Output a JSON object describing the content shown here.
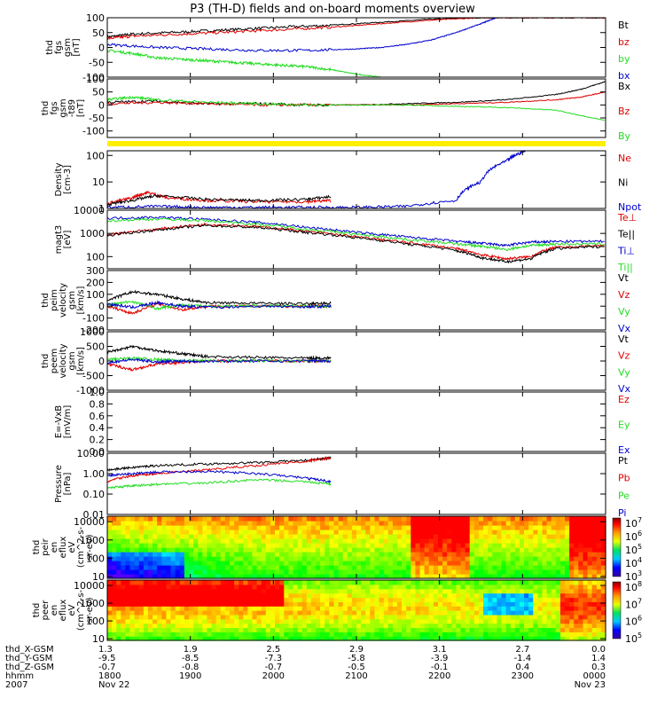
{
  "title": "P3 (TH-D) fields and on-board moments overview",
  "colors": {
    "black": "#000000",
    "red": "#e00000",
    "green": "#22dd22",
    "blue": "#0000cc",
    "yellow": "#ffee00"
  },
  "chart_data": [
    {
      "type": "line",
      "panel": "fgs",
      "ylabel": [
        "thd",
        "fgs",
        "gsm",
        "[nT]"
      ],
      "ylim": [
        -100,
        100
      ],
      "yticks": [
        "100",
        "50",
        "0",
        "-50",
        "-100"
      ],
      "ytick_values": [
        100,
        50,
        0,
        -50,
        -100
      ],
      "series": [
        {
          "name": "Bt",
          "color": "black",
          "x": [
            0,
            0.05,
            0.15,
            0.25,
            0.35,
            0.45,
            0.55,
            0.65,
            0.75,
            0.85,
            0.95,
            1.0
          ],
          "values": [
            35,
            45,
            52,
            60,
            68,
            75,
            85,
            95,
            100,
            100,
            100,
            100
          ]
        },
        {
          "name": "bz",
          "color": "red",
          "x": [
            0,
            0.05,
            0.15,
            0.25,
            0.35,
            0.45,
            0.55,
            0.65,
            0.75,
            0.85,
            0.95,
            1.0
          ],
          "values": [
            30,
            38,
            45,
            52,
            60,
            68,
            80,
            92,
            100,
            100,
            100,
            100
          ]
        },
        {
          "name": "by",
          "color": "green",
          "x": [
            0,
            0.05,
            0.1,
            0.15,
            0.2,
            0.25,
            0.3,
            0.35,
            0.4,
            0.45,
            0.5,
            0.55
          ],
          "values": [
            -10,
            -20,
            -35,
            -40,
            -45,
            -50,
            -55,
            -60,
            -65,
            -75,
            -90,
            -100
          ]
        },
        {
          "name": "bx",
          "color": "blue",
          "x": [
            0,
            0.1,
            0.2,
            0.3,
            0.4,
            0.5,
            0.55,
            0.6,
            0.65,
            0.7,
            0.75,
            0.78
          ],
          "values": [
            10,
            0,
            -5,
            -10,
            -10,
            -5,
            0,
            10,
            25,
            50,
            80,
            100
          ]
        }
      ]
    },
    {
      "type": "line",
      "panel": "fgs-t89",
      "ylabel": [
        "thd",
        "fgs",
        "gsm",
        "-t89",
        "[nT]"
      ],
      "ylim": [
        -125,
        100
      ],
      "yticks": [
        "100",
        "50",
        "0",
        "-50",
        "-100"
      ],
      "ytick_values": [
        100,
        50,
        0,
        -50,
        -100
      ],
      "series": [
        {
          "name": "Bx",
          "color": "black",
          "x": [
            0,
            0.1,
            0.2,
            0.3,
            0.4,
            0.5,
            0.6,
            0.7,
            0.8,
            0.9,
            0.95,
            1.0
          ],
          "values": [
            10,
            15,
            5,
            5,
            0,
            0,
            5,
            10,
            20,
            40,
            60,
            90
          ]
        },
        {
          "name": "Bz",
          "color": "red",
          "x": [
            0,
            0.1,
            0.2,
            0.3,
            0.4,
            0.5,
            0.6,
            0.7,
            0.8,
            0.9,
            0.95,
            1.0
          ],
          "values": [
            5,
            10,
            5,
            0,
            0,
            0,
            0,
            5,
            10,
            20,
            30,
            50
          ]
        },
        {
          "name": "By",
          "color": "green",
          "x": [
            0,
            0.05,
            0.1,
            0.2,
            0.3,
            0.4,
            0.5,
            0.6,
            0.7,
            0.8,
            0.9,
            1.0
          ],
          "values": [
            20,
            30,
            20,
            10,
            5,
            0,
            0,
            0,
            -5,
            -10,
            -20,
            -60
          ]
        }
      ]
    },
    {
      "type": "line",
      "panel": "density",
      "ylabel": [
        "Density",
        "[cm-3]"
      ],
      "yscale": "log",
      "ylim": [
        1,
        150
      ],
      "yticks": [
        "100",
        "10",
        "1"
      ],
      "ytick_values": [
        100,
        10,
        1
      ],
      "series": [
        {
          "name": "Ne",
          "color": "red",
          "x": [
            0,
            0.05,
            0.08,
            0.12,
            0.2,
            0.3,
            0.4,
            0.45
          ],
          "values": [
            1.5,
            2.5,
            4,
            2.5,
            2,
            1.8,
            1.8,
            2
          ]
        },
        {
          "name": "Ni",
          "color": "black",
          "x": [
            0,
            0.05,
            0.1,
            0.2,
            0.3,
            0.4,
            0.45
          ],
          "values": [
            1.4,
            2,
            3,
            2.2,
            2,
            2.2,
            2.8
          ]
        },
        {
          "name": "Npot",
          "color": "blue",
          "x": [
            0,
            0.1,
            0.2,
            0.3,
            0.4,
            0.5,
            0.6,
            0.7,
            0.75,
            0.8,
            0.84
          ],
          "values": [
            1.1,
            1.2,
            1.1,
            1.1,
            1.1,
            1.1,
            1.2,
            2,
            10,
            60,
            150
          ]
        }
      ]
    },
    {
      "type": "line",
      "panel": "temperature",
      "ylabel": [
        "magt3",
        "[eV]"
      ],
      "yscale": "log",
      "ylim": [
        30,
        10000
      ],
      "yticks": [
        "10000",
        "1000",
        "100"
      ],
      "ytick_values": [
        10000,
        1000,
        100
      ],
      "series": [
        {
          "name": "Te⊥",
          "color": "red",
          "x": [
            0,
            0.1,
            0.2,
            0.3,
            0.4,
            0.5,
            0.6,
            0.7,
            0.75,
            0.8,
            0.85,
            0.9,
            1.0
          ],
          "values": [
            900,
            1500,
            2500,
            2000,
            1200,
            700,
            400,
            220,
            120,
            80,
            100,
            250,
            300
          ]
        },
        {
          "name": "Te||",
          "color": "black",
          "x": [
            0,
            0.1,
            0.2,
            0.3,
            0.4,
            0.5,
            0.6,
            0.7,
            0.75,
            0.8,
            0.85,
            0.9,
            1.0
          ],
          "values": [
            800,
            1400,
            2200,
            1800,
            1100,
            650,
            350,
            180,
            90,
            60,
            80,
            220,
            280
          ]
        },
        {
          "name": "Ti⊥",
          "color": "blue",
          "x": [
            0,
            0.1,
            0.2,
            0.3,
            0.4,
            0.5,
            0.6,
            0.7,
            0.75,
            0.8,
            0.85,
            0.9,
            1.0
          ],
          "values": [
            4500,
            5000,
            4000,
            3000,
            1800,
            1100,
            700,
            450,
            380,
            300,
            420,
            450,
            450
          ]
        },
        {
          "name": "Ti||",
          "color": "green",
          "x": [
            0,
            0.1,
            0.2,
            0.3,
            0.4,
            0.5,
            0.6,
            0.7,
            0.75,
            0.8,
            0.85,
            0.9,
            1.0
          ],
          "values": [
            3500,
            4200,
            3500,
            2500,
            1500,
            900,
            550,
            350,
            280,
            200,
            300,
            350,
            350
          ]
        }
      ]
    },
    {
      "type": "line",
      "panel": "peim-velocity",
      "ylabel": [
        "thd",
        "peim",
        "velocity",
        "gsm",
        "[km/s]"
      ],
      "ylim": [
        -200,
        300
      ],
      "yticks": [
        "300",
        "200",
        "100",
        "0",
        "-100",
        "-200"
      ],
      "ytick_values": [
        300,
        200,
        100,
        0,
        -100,
        -200
      ],
      "series": [
        {
          "name": "Vt",
          "color": "black",
          "x": [
            0,
            0.05,
            0.1,
            0.15,
            0.2,
            0.3,
            0.4,
            0.45
          ],
          "values": [
            50,
            120,
            100,
            60,
            30,
            25,
            20,
            25
          ]
        },
        {
          "name": "Vz",
          "color": "red",
          "x": [
            0,
            0.05,
            0.1,
            0.15,
            0.2,
            0.3,
            0.4,
            0.45
          ],
          "values": [
            0,
            -60,
            20,
            -30,
            0,
            0,
            0,
            0
          ]
        },
        {
          "name": "Vy",
          "color": "green",
          "x": [
            0,
            0.05,
            0.1,
            0.15,
            0.2,
            0.3,
            0.4,
            0.45
          ],
          "values": [
            10,
            40,
            -20,
            10,
            0,
            5,
            0,
            0
          ]
        },
        {
          "name": "Vx",
          "color": "blue",
          "x": [
            0,
            0.05,
            0.1,
            0.15,
            0.2,
            0.3,
            0.4,
            0.45
          ],
          "values": [
            20,
            -10,
            30,
            0,
            -10,
            0,
            -5,
            0
          ]
        }
      ]
    },
    {
      "type": "line",
      "panel": "peem-velocity",
      "ylabel": [
        "thd",
        "peem",
        "velocity",
        "gsm",
        "[km/s]"
      ],
      "ylim": [
        -1000,
        1000
      ],
      "yticks": [
        "1000",
        "500",
        "0",
        "-500",
        "-1000"
      ],
      "ytick_values": [
        1000,
        500,
        0,
        -500,
        -1000
      ],
      "series": [
        {
          "name": "Vt",
          "color": "black",
          "x": [
            0,
            0.05,
            0.1,
            0.15,
            0.2,
            0.3,
            0.4,
            0.45
          ],
          "values": [
            300,
            500,
            350,
            250,
            150,
            120,
            100,
            100
          ]
        },
        {
          "name": "Vz",
          "color": "red",
          "x": [
            0,
            0.05,
            0.1,
            0.15,
            0.2,
            0.3,
            0.4,
            0.45
          ],
          "values": [
            -100,
            -300,
            -100,
            -50,
            0,
            0,
            0,
            0
          ]
        },
        {
          "name": "Vy",
          "color": "green",
          "x": [
            0,
            0.05,
            0.1,
            0.15,
            0.2,
            0.3,
            0.4,
            0.45
          ],
          "values": [
            50,
            100,
            50,
            20,
            10,
            10,
            0,
            0
          ]
        },
        {
          "name": "Vx",
          "color": "blue",
          "x": [
            0,
            0.05,
            0.1,
            0.15,
            0.2,
            0.3,
            0.4,
            0.45
          ],
          "values": [
            -50,
            50,
            -30,
            0,
            -10,
            0,
            0,
            0
          ]
        }
      ]
    },
    {
      "type": "line",
      "panel": "efield",
      "ylabel": [
        "E=-VxB",
        "[mV/m]"
      ],
      "ylim": [
        0,
        1
      ],
      "yticks": [
        "1.0",
        "0.8",
        "0.6",
        "0.4",
        "0.2",
        "0.0"
      ],
      "ytick_values": [
        1,
        0.8,
        0.6,
        0.4,
        0.2,
        0
      ],
      "series": [
        {
          "name": "Ez",
          "color": "red",
          "x": [],
          "values": []
        },
        {
          "name": "Ey",
          "color": "green",
          "x": [],
          "values": []
        },
        {
          "name": "Ex",
          "color": "blue",
          "x": [],
          "values": []
        }
      ]
    },
    {
      "type": "line",
      "panel": "pressure",
      "ylabel": [
        "Pressure",
        "[nPa]"
      ],
      "yscale": "log",
      "ylim": [
        0.01,
        10
      ],
      "yticks": [
        "10.00",
        "1.00",
        "0.10",
        "0.01"
      ],
      "ytick_values": [
        10,
        1,
        0.1,
        0.01
      ],
      "series": [
        {
          "name": "Pt",
          "color": "black",
          "x": [
            0,
            0.05,
            0.1,
            0.2,
            0.3,
            0.4,
            0.45
          ],
          "values": [
            1.5,
            2,
            2.5,
            3,
            3.5,
            4.5,
            6
          ]
        },
        {
          "name": "Pb",
          "color": "red",
          "x": [
            0,
            0.05,
            0.1,
            0.2,
            0.3,
            0.4,
            0.45
          ],
          "values": [
            0.4,
            0.8,
            1,
            1.5,
            2.5,
            4,
            6
          ]
        },
        {
          "name": "Pe",
          "color": "green",
          "x": [
            0,
            0.05,
            0.1,
            0.2,
            0.3,
            0.4,
            0.45
          ],
          "values": [
            0.2,
            0.25,
            0.3,
            0.35,
            0.5,
            0.4,
            0.3
          ]
        },
        {
          "name": "Pi",
          "color": "blue",
          "x": [
            0,
            0.05,
            0.1,
            0.2,
            0.3,
            0.4,
            0.45
          ],
          "values": [
            0.8,
            1,
            1.2,
            1.3,
            1,
            0.6,
            0.4
          ]
        }
      ]
    },
    {
      "type": "heatmap",
      "panel": "peir",
      "ylabel": [
        "thd",
        "peir",
        "en",
        "eflux",
        "eV",
        "(cm^2-s-",
        "sr-eV)"
      ],
      "yscale": "log",
      "ylim": [
        8,
        20000
      ],
      "yticks": [
        "10000",
        "1000",
        "100",
        "10"
      ],
      "ytick_values": [
        10000,
        1000,
        100,
        10
      ],
      "colorbar": {
        "labels": [
          "10^7",
          "10^6",
          "10^5",
          "10^4",
          "10^3"
        ]
      }
    },
    {
      "type": "heatmap",
      "panel": "peer",
      "ylabel": [
        "thd",
        "peer",
        "en",
        "eflux",
        "eV",
        "(cm^2-s-",
        "sr-eV)"
      ],
      "yscale": "log",
      "ylim": [
        8,
        20000
      ],
      "yticks": [
        "10000",
        "1000",
        "100",
        "10"
      ],
      "ytick_values": [
        10000,
        1000,
        100,
        10
      ],
      "colorbar": {
        "labels": [
          "10^8",
          "10^7",
          "10^6",
          "10^5"
        ]
      }
    }
  ],
  "ephemeris": {
    "row_labels": [
      "thd_X-GSM",
      "thd_Y-GSM",
      "thd_Z-GSM",
      "hhmm",
      "2007"
    ],
    "columns": [
      {
        "x": "1.3",
        "y": "-9.5",
        "z": "-0.7",
        "time": "1800",
        "date": "Nov 22"
      },
      {
        "x": "1.9",
        "y": "-8.5",
        "z": "-0.8",
        "time": "1900",
        "date": ""
      },
      {
        "x": "2.5",
        "y": "-7.3",
        "z": "-0.7",
        "time": "2000",
        "date": ""
      },
      {
        "x": "2.9",
        "y": "-5.8",
        "z": "-0.5",
        "time": "2100",
        "date": ""
      },
      {
        "x": "3.1",
        "y": "-3.9",
        "z": "-0.1",
        "time": "2200",
        "date": ""
      },
      {
        "x": "2.7",
        "y": "-1.4",
        "z": "0.4",
        "time": "2300",
        "date": ""
      },
      {
        "x": "0.0",
        "y": "1.4",
        "z": "0.3",
        "time": "0000",
        "date": "Nov 23"
      }
    ]
  }
}
